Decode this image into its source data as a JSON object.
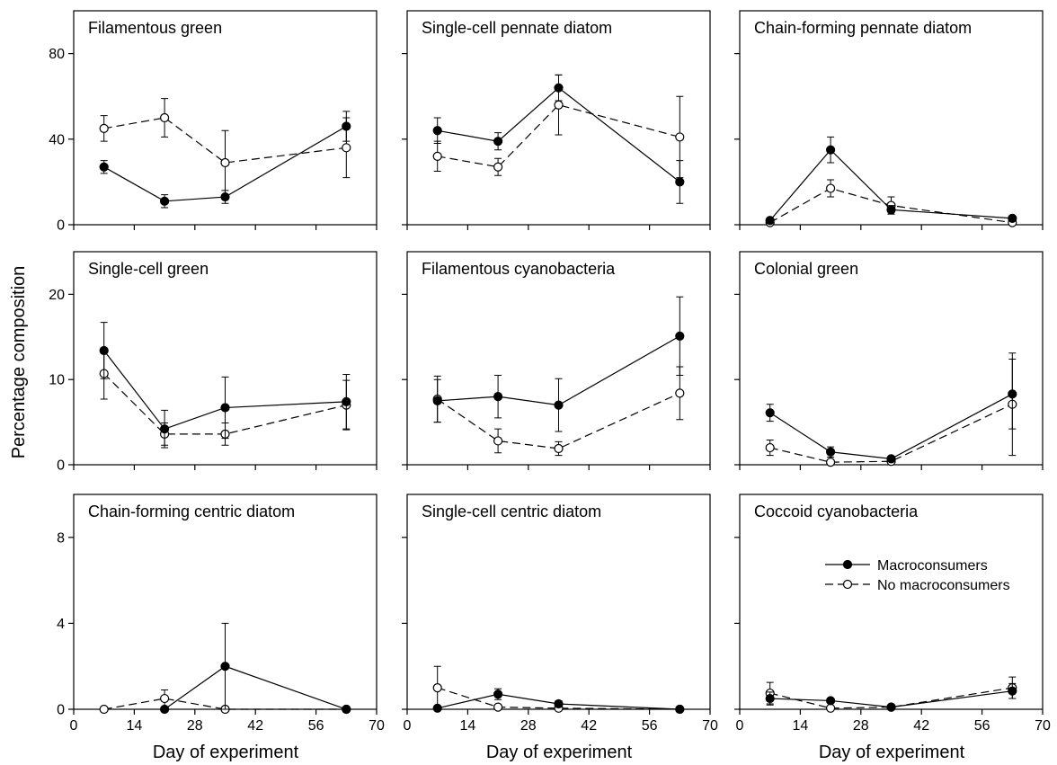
{
  "figure": {
    "ylabel": "Percentage composition",
    "xlabel": "Day of experiment",
    "legend": {
      "placement": "panel-9-right",
      "macro_label": "Macroconsumers",
      "nomacro_label": "No macroconsumers"
    }
  },
  "chart_data": [
    {
      "type": "line",
      "title": "Filamentous green",
      "xlim": [
        0,
        70
      ],
      "ylim": [
        0,
        100
      ],
      "xticks": [
        0,
        14,
        28,
        42,
        56,
        70
      ],
      "yticks": [
        0,
        40,
        80
      ],
      "show_xtick_labels": false,
      "show_ytick_labels": true,
      "series": [
        {
          "name": "Macroconsumers",
          "marker": "filled",
          "line": "solid",
          "x": [
            7,
            21,
            35,
            63
          ],
          "y": [
            27,
            11,
            13,
            46
          ],
          "err": [
            3,
            3,
            3,
            7
          ]
        },
        {
          "name": "No macroconsumers",
          "marker": "open",
          "line": "dashed",
          "x": [
            7,
            21,
            35,
            63
          ],
          "y": [
            45,
            50,
            29,
            36
          ],
          "err": [
            6,
            9,
            15,
            14
          ]
        }
      ]
    },
    {
      "type": "line",
      "title": "Single-cell pennate diatom",
      "xlim": [
        0,
        70
      ],
      "ylim": [
        0,
        100
      ],
      "xticks": [
        0,
        14,
        28,
        42,
        56,
        70
      ],
      "yticks": [
        0,
        40,
        80
      ],
      "show_xtick_labels": false,
      "show_ytick_labels": false,
      "series": [
        {
          "name": "Macroconsumers",
          "marker": "filled",
          "line": "solid",
          "x": [
            7,
            21,
            35,
            63
          ],
          "y": [
            44,
            39,
            64,
            20
          ],
          "err": [
            6,
            4,
            6,
            10
          ]
        },
        {
          "name": "No macroconsumers",
          "marker": "open",
          "line": "dashed",
          "x": [
            7,
            21,
            35,
            63
          ],
          "y": [
            32,
            27,
            56,
            41
          ],
          "err": [
            7,
            4,
            14,
            19
          ]
        }
      ]
    },
    {
      "type": "line",
      "title": "Chain-forming pennate diatom",
      "xlim": [
        0,
        70
      ],
      "ylim": [
        0,
        100
      ],
      "xticks": [
        0,
        14,
        28,
        42,
        56,
        70
      ],
      "yticks": [
        0,
        40,
        80
      ],
      "show_xtick_labels": false,
      "show_ytick_labels": false,
      "series": [
        {
          "name": "Macroconsumers",
          "marker": "filled",
          "line": "solid",
          "x": [
            7,
            21,
            35,
            63
          ],
          "y": [
            2,
            35,
            7,
            3
          ],
          "err": [
            1,
            6,
            2,
            1
          ]
        },
        {
          "name": "No macroconsumers",
          "marker": "open",
          "line": "dashed",
          "x": [
            7,
            21,
            35,
            63
          ],
          "y": [
            1,
            17,
            9,
            1
          ],
          "err": [
            1,
            4,
            4,
            1
          ]
        }
      ]
    },
    {
      "type": "line",
      "title": "Single-cell green",
      "xlim": [
        0,
        70
      ],
      "ylim": [
        0,
        25
      ],
      "xticks": [
        0,
        14,
        28,
        42,
        56,
        70
      ],
      "yticks": [
        0,
        10,
        20
      ],
      "show_xtick_labels": false,
      "show_ytick_labels": true,
      "series": [
        {
          "name": "Macroconsumers",
          "marker": "filled",
          "line": "solid",
          "x": [
            7,
            21,
            35,
            63
          ],
          "y": [
            13.4,
            4.2,
            6.7,
            7.4
          ],
          "err": [
            3.3,
            2.2,
            3.6,
            3.2
          ]
        },
        {
          "name": "No macroconsumers",
          "marker": "open",
          "line": "dashed",
          "x": [
            7,
            21,
            35,
            63
          ],
          "y": [
            10.7,
            3.6,
            3.6,
            7.0
          ],
          "err": [
            3.0,
            1.3,
            1.3,
            2.9
          ]
        }
      ]
    },
    {
      "type": "line",
      "title": "Filamentous cyanobacteria",
      "xlim": [
        0,
        70
      ],
      "ylim": [
        0,
        25
      ],
      "xticks": [
        0,
        14,
        28,
        42,
        56,
        70
      ],
      "yticks": [
        0,
        10,
        20
      ],
      "show_xtick_labels": false,
      "show_ytick_labels": false,
      "series": [
        {
          "name": "Macroconsumers",
          "marker": "filled",
          "line": "solid",
          "x": [
            7,
            21,
            35,
            63
          ],
          "y": [
            7.5,
            8.0,
            7.0,
            15.1
          ],
          "err": [
            2.5,
            2.5,
            3.1,
            4.6
          ]
        },
        {
          "name": "No macroconsumers",
          "marker": "open",
          "line": "dashed",
          "x": [
            7,
            21,
            35,
            63
          ],
          "y": [
            7.7,
            2.8,
            1.9,
            8.4
          ],
          "err": [
            2.7,
            1.4,
            0.8,
            3.1
          ]
        }
      ]
    },
    {
      "type": "line",
      "title": "Colonial green",
      "xlim": [
        0,
        70
      ],
      "ylim": [
        0,
        25
      ],
      "xticks": [
        0,
        14,
        28,
        42,
        56,
        70
      ],
      "yticks": [
        0,
        10,
        20
      ],
      "show_xtick_labels": false,
      "show_ytick_labels": false,
      "series": [
        {
          "name": "Macroconsumers",
          "marker": "filled",
          "line": "solid",
          "x": [
            7,
            21,
            35,
            63
          ],
          "y": [
            6.1,
            1.5,
            0.7,
            8.3
          ],
          "err": [
            1.0,
            0.6,
            0.3,
            4.1
          ]
        },
        {
          "name": "No macroconsumers",
          "marker": "open",
          "line": "dashed",
          "x": [
            7,
            21,
            35,
            63
          ],
          "y": [
            2.0,
            0.3,
            0.4,
            7.1
          ],
          "err": [
            0.9,
            0.2,
            0.2,
            6.0
          ]
        }
      ]
    },
    {
      "type": "line",
      "title": "Chain-forming centric diatom",
      "xlim": [
        0,
        70
      ],
      "ylim": [
        0,
        10
      ],
      "xticks": [
        0,
        14,
        28,
        42,
        56,
        70
      ],
      "yticks": [
        0,
        4,
        8
      ],
      "show_xtick_labels": true,
      "show_ytick_labels": true,
      "series": [
        {
          "name": "Macroconsumers",
          "marker": "filled",
          "line": "solid",
          "x": [
            21,
            35,
            63
          ],
          "y": [
            0,
            2.0,
            0
          ],
          "err": [
            0,
            2.0,
            0
          ]
        },
        {
          "name": "No macroconsumers",
          "marker": "open",
          "line": "dashed",
          "x": [
            7,
            21,
            35,
            63
          ],
          "y": [
            0,
            0.5,
            0,
            0
          ],
          "err": [
            0,
            0.4,
            0,
            0
          ]
        }
      ]
    },
    {
      "type": "line",
      "title": "Single-cell centric diatom",
      "xlim": [
        0,
        70
      ],
      "ylim": [
        0,
        10
      ],
      "xticks": [
        0,
        14,
        28,
        42,
        56,
        70
      ],
      "yticks": [
        0,
        4,
        8
      ],
      "show_xtick_labels": true,
      "show_ytick_labels": false,
      "series": [
        {
          "name": "Macroconsumers",
          "marker": "filled",
          "line": "solid",
          "x": [
            7,
            21,
            35,
            63
          ],
          "y": [
            0.05,
            0.7,
            0.25,
            0
          ],
          "err": [
            0,
            0.25,
            0.15,
            0
          ]
        },
        {
          "name": "No macroconsumers",
          "marker": "open",
          "line": "dashed",
          "x": [
            7,
            21,
            35,
            63
          ],
          "y": [
            1.0,
            0.1,
            0.05,
            0
          ],
          "err": [
            1.0,
            0.1,
            0,
            0
          ]
        }
      ]
    },
    {
      "type": "line",
      "title": "Coccoid cyanobacteria",
      "xlim": [
        0,
        70
      ],
      "ylim": [
        0,
        10
      ],
      "xticks": [
        0,
        14,
        28,
        42,
        56,
        70
      ],
      "yticks": [
        0,
        4,
        8
      ],
      "show_xtick_labels": true,
      "show_ytick_labels": false,
      "series": [
        {
          "name": "Macroconsumers",
          "marker": "filled",
          "line": "solid",
          "x": [
            7,
            21,
            35,
            63
          ],
          "y": [
            0.5,
            0.4,
            0.1,
            0.85
          ],
          "err": [
            0.3,
            0.1,
            0.05,
            0.35
          ]
        },
        {
          "name": "No macroconsumers",
          "marker": "open",
          "line": "dashed",
          "x": [
            7,
            21,
            35,
            63
          ],
          "y": [
            0.75,
            0.05,
            0.1,
            1.0
          ],
          "err": [
            0.5,
            0.05,
            0.05,
            0.5
          ]
        }
      ]
    }
  ]
}
